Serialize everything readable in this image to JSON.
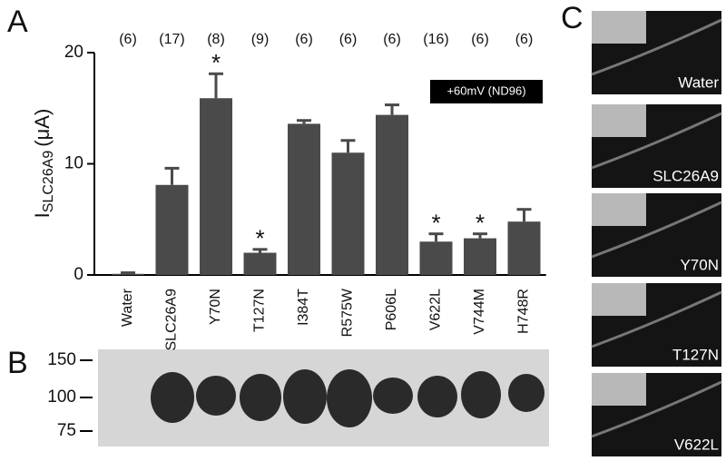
{
  "chart_data": {
    "type": "bar",
    "panel_label": "A",
    "ylabel": {
      "main": "I",
      "sub": "SLC26A9",
      "unit": "(μA)"
    },
    "categories": [
      "Water",
      "SLC26A9",
      "Y70N",
      "T127N",
      "I384T",
      "R575W",
      "P606L",
      "V622L",
      "V744M",
      "H748R"
    ],
    "values": [
      0.1,
      8.1,
      15.9,
      2.0,
      13.6,
      11.0,
      14.4,
      3.0,
      3.3,
      4.8
    ],
    "errors": [
      0.1,
      1.5,
      2.2,
      0.3,
      0.3,
      1.1,
      0.9,
      0.7,
      0.4,
      1.1
    ],
    "n_labels": [
      "(6)",
      "(17)",
      "(8)",
      "(9)",
      "(6)",
      "(6)",
      "(6)",
      "(16)",
      "(6)",
      "(6)"
    ],
    "significance": [
      null,
      null,
      "*",
      "*",
      null,
      null,
      null,
      "*",
      "*",
      null
    ],
    "condition": "+60mV (ND96)",
    "color": "#4a4a4a",
    "ylim": [
      0,
      20
    ],
    "yticks": [
      0,
      10,
      20
    ],
    "grid": false
  },
  "blot": {
    "panel_label": "B",
    "markers": [
      150,
      100,
      75
    ]
  },
  "images": {
    "panel_label": "C",
    "labels": [
      "Water",
      "SLC26A9",
      "Y70N",
      "T127N",
      "V622L"
    ]
  }
}
